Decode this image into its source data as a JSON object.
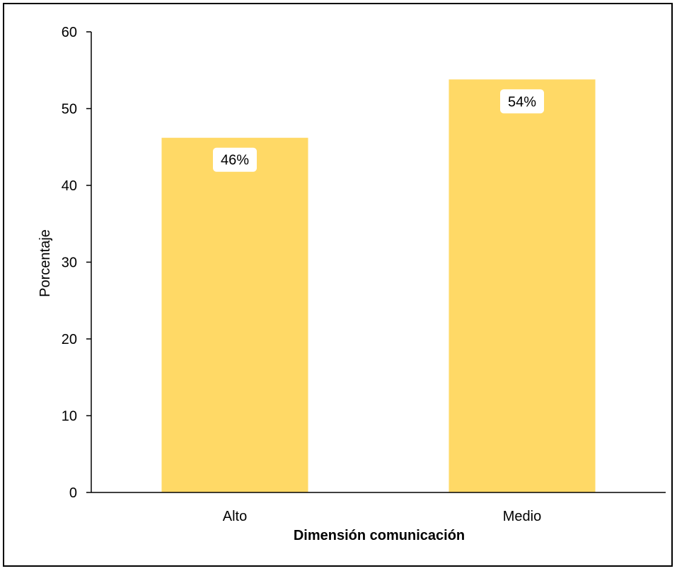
{
  "chart_data": {
    "type": "bar",
    "title": "",
    "xlabel": "Dimensión comunicación",
    "ylabel": "Porcentaje",
    "categories": [
      "Alto",
      "Medio"
    ],
    "values": [
      46.2,
      53.8
    ],
    "data_labels": [
      "46%",
      "54%"
    ],
    "ylim": [
      0,
      60
    ],
    "yticks": [
      0,
      10,
      20,
      30,
      40,
      50,
      60
    ],
    "ytick_labels": [
      "0",
      "10",
      "20",
      "30",
      "40",
      "50",
      "60"
    ],
    "grid": false,
    "legend": "none",
    "bar_color": "#FFD966"
  }
}
